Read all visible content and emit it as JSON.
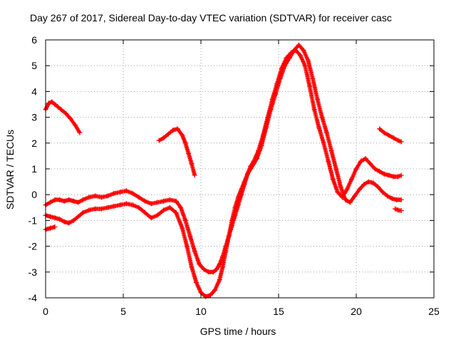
{
  "chart_data": {
    "type": "scatter",
    "title": "Day 267 of 2017, Sidereal Day-to-day VTEC variation (SDTVAR) for receiver casc",
    "xlabel": "GPS time / hours",
    "ylabel": "SDTVAR / TECUs",
    "xlim": [
      0,
      25
    ],
    "ylim": [
      -4,
      6
    ],
    "grid": true,
    "x_ticks": [
      0,
      5,
      10,
      15,
      20,
      25
    ],
    "y_ticks": [
      -4,
      -3,
      -2,
      -1,
      0,
      1,
      2,
      3,
      4,
      5,
      6
    ],
    "marker": "+",
    "series_color": "#ff0000",
    "series": [
      {
        "name": "trace-1",
        "x": [
          0,
          0.2,
          0.4,
          0.6,
          0.8,
          1.0,
          1.3,
          1.6,
          1.9,
          2.2
        ],
        "y": [
          3.3,
          3.55,
          3.6,
          3.5,
          3.4,
          3.3,
          3.15,
          2.95,
          2.7,
          2.4
        ]
      },
      {
        "name": "trace-2",
        "x": [
          7.3,
          7.6,
          7.9,
          8.2,
          8.5,
          8.8,
          9.0,
          9.2,
          9.4,
          9.6
        ],
        "y": [
          2.1,
          2.2,
          2.35,
          2.5,
          2.55,
          2.3,
          2.0,
          1.6,
          1.2,
          0.75
        ]
      },
      {
        "name": "trace-3",
        "x": [
          21.5,
          21.8,
          22.1,
          22.4,
          22.7,
          22.9
        ],
        "y": [
          2.55,
          2.4,
          2.3,
          2.2,
          2.1,
          2.05
        ]
      },
      {
        "name": "trace-4",
        "x": [
          0,
          0.3,
          0.6,
          0.9,
          1.2,
          1.5,
          1.8,
          2.1,
          2.4,
          2.8,
          3.2,
          3.6,
          4.0,
          4.4,
          4.8,
          5.2,
          5.6,
          6.0,
          6.4,
          6.8,
          7.2,
          7.6,
          8.0,
          8.4,
          8.7,
          9.0,
          9.3,
          9.6,
          9.9,
          10.2,
          10.5,
          10.8,
          11.0,
          11.2,
          11.4,
          11.6,
          11.8,
          12.0,
          12.2,
          12.4,
          12.6,
          12.8,
          13.0,
          13.2,
          13.4,
          13.7,
          14.0,
          14.3,
          14.6,
          14.9,
          15.2,
          15.5,
          15.8,
          16.1,
          16.4,
          16.7,
          17.0,
          17.3,
          17.6,
          17.9,
          18.2,
          18.5,
          18.8,
          19.1,
          19.4,
          19.7,
          20.0,
          20.3,
          20.6,
          20.9,
          21.2,
          21.5,
          21.8,
          22.1,
          22.4,
          22.7,
          22.9
        ],
        "y": [
          -0.4,
          -0.3,
          -0.2,
          -0.2,
          -0.25,
          -0.2,
          -0.25,
          -0.3,
          -0.2,
          -0.1,
          -0.05,
          -0.1,
          -0.05,
          0.05,
          0.1,
          0.15,
          0.05,
          -0.1,
          -0.25,
          -0.35,
          -0.3,
          -0.25,
          -0.2,
          -0.25,
          -0.5,
          -1.0,
          -1.6,
          -2.2,
          -2.7,
          -2.9,
          -3.0,
          -3.0,
          -2.9,
          -2.7,
          -2.4,
          -2.0,
          -1.6,
          -1.2,
          -0.8,
          -0.4,
          0.0,
          0.4,
          0.8,
          1.1,
          1.3,
          1.7,
          2.3,
          3.0,
          3.7,
          4.3,
          4.9,
          5.3,
          5.5,
          5.6,
          5.4,
          5.0,
          4.2,
          3.3,
          2.6,
          2.0,
          1.3,
          0.6,
          0.1,
          -0.1,
          0.2,
          0.6,
          1.0,
          1.3,
          1.4,
          1.2,
          1.0,
          0.9,
          0.8,
          0.75,
          0.7,
          0.7,
          0.75
        ]
      },
      {
        "name": "trace-5",
        "x": [
          0,
          0.3,
          0.6,
          0.9,
          1.2,
          1.5,
          1.8,
          2.1,
          2.4,
          2.8,
          3.2,
          3.6,
          4.0,
          4.4,
          4.8,
          5.2,
          5.6,
          6.0,
          6.4,
          6.8,
          7.2,
          7.6,
          8.0,
          8.4,
          8.8,
          9.1,
          9.4,
          9.7,
          10.0,
          10.3,
          10.6,
          10.9,
          11.2,
          11.4,
          11.6,
          11.8,
          12.0,
          12.2,
          12.4,
          12.6,
          12.8,
          13.0,
          13.2,
          13.4,
          13.6,
          13.9,
          14.2,
          14.5,
          14.8,
          15.1,
          15.4,
          15.7,
          16.0,
          16.3,
          16.6,
          16.9,
          17.2,
          17.5,
          17.8,
          18.1,
          18.4,
          18.7,
          19.0,
          19.3,
          19.6,
          19.9,
          20.2,
          20.5,
          20.8,
          21.1,
          21.4,
          21.7,
          22.0,
          22.3,
          22.6,
          22.9
        ],
        "y": [
          -0.8,
          -0.85,
          -0.9,
          -0.95,
          -1.05,
          -1.1,
          -1.0,
          -0.85,
          -0.7,
          -0.6,
          -0.55,
          -0.55,
          -0.5,
          -0.45,
          -0.4,
          -0.35,
          -0.4,
          -0.5,
          -0.7,
          -0.9,
          -0.8,
          -0.6,
          -0.5,
          -0.7,
          -1.3,
          -2.0,
          -2.8,
          -3.4,
          -3.8,
          -3.95,
          -3.9,
          -3.7,
          -3.3,
          -2.8,
          -2.2,
          -1.6,
          -1.0,
          -0.5,
          -0.1,
          0.2,
          0.5,
          0.8,
          1.0,
          1.2,
          1.4,
          1.9,
          2.6,
          3.3,
          3.9,
          4.5,
          5.0,
          5.3,
          5.6,
          5.8,
          5.6,
          5.2,
          4.5,
          3.7,
          3.0,
          2.4,
          1.7,
          1.0,
          0.3,
          -0.2,
          -0.3,
          -0.05,
          0.2,
          0.4,
          0.5,
          0.45,
          0.3,
          0.1,
          -0.05,
          -0.15,
          -0.2,
          -0.2
        ]
      },
      {
        "name": "trace-6",
        "x": [
          0,
          0.3,
          0.6
        ],
        "y": [
          -1.35,
          -1.3,
          -1.25
        ]
      },
      {
        "name": "trace-7",
        "x": [
          22.5,
          22.7,
          22.9
        ],
        "y": [
          -0.55,
          -0.6,
          -0.62
        ]
      }
    ]
  }
}
